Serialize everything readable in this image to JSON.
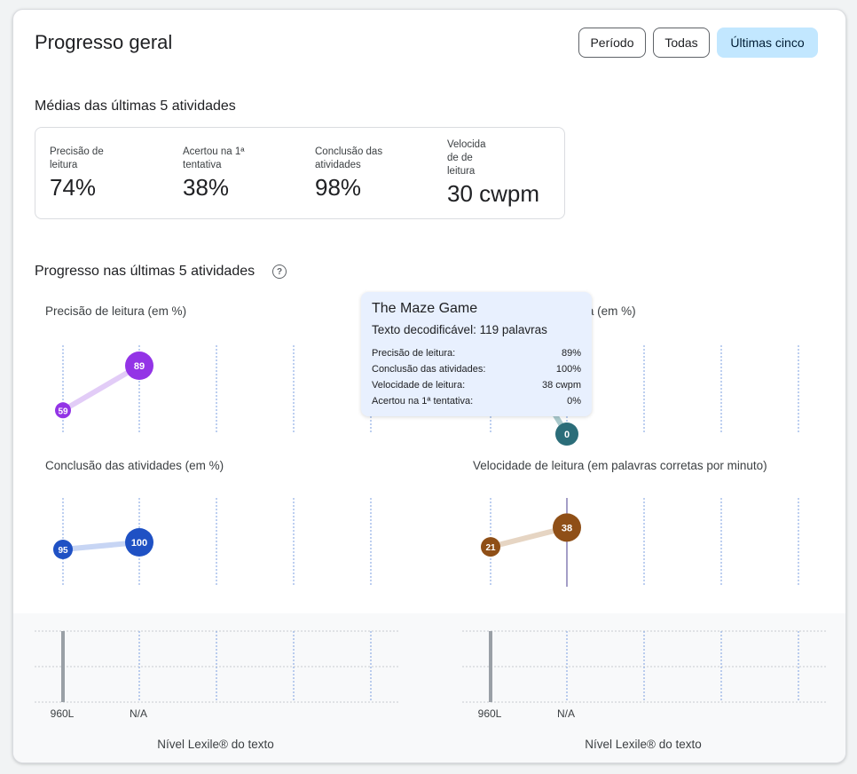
{
  "header": {
    "title": "Progresso geral",
    "filters": [
      {
        "label": "Período",
        "selected": false
      },
      {
        "label": "Todas",
        "selected": false
      },
      {
        "label": "Últimas cinco",
        "selected": true
      }
    ]
  },
  "averages": {
    "heading": "Médias das últimas 5 atividades",
    "metrics": [
      {
        "label": "Precisão de leitura",
        "value": "74%"
      },
      {
        "label": "Acertou na 1ª tentativa",
        "value": "38%"
      },
      {
        "label": "Conclusão das atividades",
        "value": "98%"
      },
      {
        "label": "Velocida de de leitura",
        "value": "30 cwpm"
      }
    ]
  },
  "progress": {
    "heading": "Progresso nas últimas 5 atividades",
    "help_icon": "help-circle-icon"
  },
  "chart_data": [
    {
      "type": "line",
      "title": "Precisão de leitura (em %)",
      "unit": "%",
      "x": [
        1,
        2
      ],
      "values": [
        59,
        89
      ],
      "ylim": [
        0,
        100
      ],
      "color": "#9334e6",
      "line_color": "#e2ccf7"
    },
    {
      "type": "line",
      "title": "Acertou na 1ª tentativa (em %)",
      "unit": "%",
      "x": [
        1,
        2
      ],
      "values": [
        null,
        0
      ],
      "ylim": [
        0,
        100
      ],
      "color": "#2b6d79",
      "line_color": "#a9c9cc"
    },
    {
      "type": "line",
      "title": "Conclusão das atividades (em %)",
      "unit": "%",
      "x": [
        1,
        2
      ],
      "values": [
        95,
        100
      ],
      "ylim": [
        0,
        100
      ],
      "color": "#1f51c4",
      "line_color": "#c7d5f4"
    },
    {
      "type": "line",
      "title": "Velocidade de leitura (em palavras corretas por minuto)",
      "unit": "cwpm",
      "x": [
        1,
        2
      ],
      "values": [
        21,
        38
      ],
      "ylim": [
        0,
        60
      ],
      "color": "#8f4f17",
      "line_color": "#e6d5c3"
    },
    {
      "type": "bar",
      "title": "Nível Lexile® do texto",
      "categories": [
        "960L",
        "N/A"
      ],
      "values": [
        960,
        null
      ],
      "color": "#9aa0a6"
    },
    {
      "type": "bar",
      "title": "Nível Lexile® do texto",
      "categories": [
        "960L",
        "N/A"
      ],
      "values": [
        960,
        null
      ],
      "color": "#9aa0a6"
    }
  ],
  "tooltip": {
    "title": "The Maze Game",
    "subtitle": "Texto decodificável: 119 palavras",
    "rows": [
      {
        "label": "Precisão de leitura:",
        "value": "89%"
      },
      {
        "label": "Conclusão das atividades:",
        "value": "100%"
      },
      {
        "label": "Velocidade de leitura:",
        "value": "38 cwpm"
      },
      {
        "label": "Acertou na 1ª tentativa:",
        "value": "0%"
      }
    ]
  }
}
